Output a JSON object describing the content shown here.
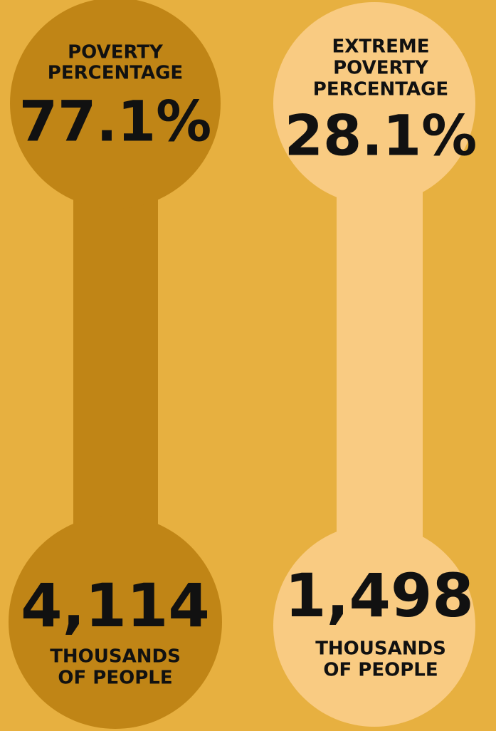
{
  "panels": [
    {
      "label_lines": [
        "POVERTY",
        "PERCENTAGE"
      ],
      "percentage": "77.1%",
      "count": "4,114",
      "count_unit_lines": [
        "THOUSANDS",
        "OF PEOPLE"
      ]
    },
    {
      "label_lines": [
        "EXTREME",
        "POVERTY",
        "PERCENTAGE"
      ],
      "percentage": "28.1%",
      "count": "1,498",
      "count_unit_lines": [
        "THOUSANDS",
        "OF PEOPLE"
      ]
    }
  ]
}
